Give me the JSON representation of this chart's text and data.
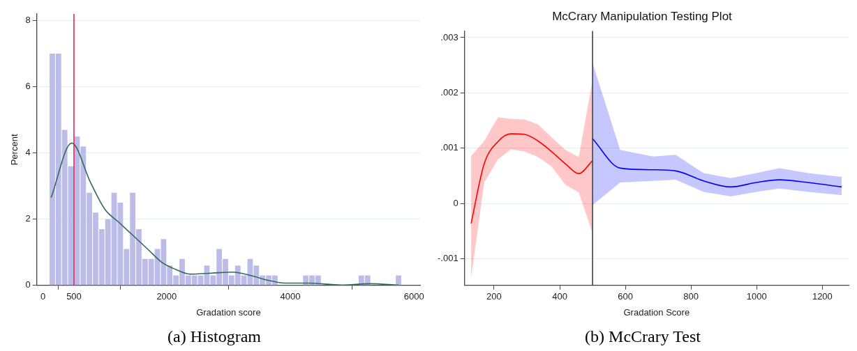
{
  "chart_data": [
    {
      "type": "histogram",
      "xlabel": "Gradation score",
      "ylabel": "Percent",
      "color": "#bcbce8",
      "bins": [
        100,
        200,
        300,
        400,
        500,
        600,
        700,
        800,
        900,
        1000,
        1100,
        1200,
        1300,
        1400,
        1500,
        1600,
        1700,
        1800,
        1900,
        2000,
        2100,
        2200,
        2300,
        2400,
        2500,
        2600,
        2700,
        2800,
        2900,
        3000,
        3100,
        3200,
        3300,
        3400,
        3500,
        3600,
        3700,
        3800,
        3900,
        4000,
        4100,
        4200,
        4300,
        4400,
        4500,
        4600,
        4700,
        4800,
        4900,
        5000,
        5100,
        5200,
        5300,
        5400,
        5500,
        5600,
        5700,
        5800
      ],
      "values": [
        7.0,
        7.0,
        4.7,
        3.6,
        4.5,
        4.2,
        2.8,
        2.2,
        1.7,
        2.0,
        2.8,
        2.5,
        1.1,
        2.8,
        1.7,
        0.8,
        0.8,
        1.1,
        1.4,
        0.6,
        0.3,
        0.8,
        0.3,
        0.3,
        0.3,
        0.6,
        0.3,
        1.1,
        0.8,
        0.3,
        0.6,
        0.3,
        0.8,
        0.6,
        0.3,
        0.3,
        0.3,
        0,
        0,
        0,
        0,
        0.3,
        0.3,
        0.3,
        0,
        0,
        0,
        0,
        0,
        0,
        0.3,
        0.3,
        0,
        0,
        0,
        0,
        0.3
      ],
      "series": [
        {
          "type": "line",
          "color": "#2f6b5c",
          "x": [
            130,
            463,
            770,
            1000,
            1230,
            1460,
            1690,
            1920,
            2150,
            2379,
            2720,
            3070,
            3375,
            3650,
            3910,
            4290,
            4830,
            5290,
            5750
          ],
          "values": [
            2.65,
            4.3,
            3.1,
            2.3,
            1.9,
            1.5,
            1.1,
            0.7,
            0.48,
            0.34,
            0.37,
            0.4,
            0.29,
            0.15,
            0.07,
            0.07,
            0.01,
            0.05,
            0.01
          ]
        }
      ],
      "xlim": [
        -100,
        6100
      ],
      "xticks": [
        0,
        500,
        2000,
        4000,
        6000
      ],
      "ylim": [
        0,
        8.2
      ],
      "yticks": [
        0,
        2,
        4,
        6,
        8
      ],
      "grid": "y",
      "ref_lines": [
        {
          "axis": "x",
          "value": 500,
          "color": "#e0174a"
        }
      ],
      "annotations": [
        "(a) Histogram"
      ]
    },
    {
      "type": "line",
      "title": "McCrary Manipulation Testing Plot",
      "xlabel": "Gradation Score",
      "series": [
        {
          "color": "#ff0000",
          "x": [
            130,
            170,
            212,
            251,
            293,
            334,
            375,
            417,
            458,
            499
          ],
          "values": [
            -0.00036,
            0.00072,
            0.00112,
            0.00126,
            0.00125,
            0.00113,
            0.00094,
            0.00072,
            0.00054,
            0.00077
          ],
          "lower": [
            -0.00134,
            0.00038,
            0.0008,
            0.00098,
            0.00094,
            0.00084,
            0.00067,
            0.00034,
            0.0002,
            -0.00052
          ],
          "upper": [
            0.00086,
            0.00113,
            0.00156,
            0.00153,
            0.00152,
            0.00143,
            0.0012,
            0.00097,
            0.00084,
            0.0022
          ]
        },
        {
          "color": "#0000ff",
          "x": [
            500,
            584,
            685,
            753,
            838,
            921,
            999,
            1069,
            1156,
            1259
          ],
          "values": [
            0.00117,
            0.00064,
            0.00061,
            0.00059,
            0.00041,
            0.0003,
            0.00038,
            0.00043,
            0.00038,
            0.0003
          ],
          "lower": [
            -3e-05,
            0.00038,
            0.00041,
            0.00043,
            0.00021,
            0.00013,
            0.00021,
            0.00027,
            0.00021,
            0.00015
          ],
          "upper": [
            0.00254,
            0.00097,
            0.00085,
            0.00088,
            0.00055,
            0.00046,
            0.00055,
            0.00064,
            0.00055,
            0.00048
          ]
        }
      ],
      "xlim": [
        110,
        1280
      ],
      "xticks": [
        200,
        400,
        600,
        800,
        1000,
        1200
      ],
      "ylim": [
        -0.00148,
        0.00312
      ],
      "yticks": [
        {
          "value": -0.001,
          "label": "-.001"
        },
        {
          "value": 0,
          "label": "0"
        },
        {
          "value": 0.001,
          "label": ".001"
        },
        {
          "value": 0.002,
          "label": ".002"
        },
        {
          "value": 0.003,
          "label": ".003"
        }
      ],
      "grid": "y",
      "ref_lines": [
        {
          "axis": "x",
          "value": 500,
          "color": "#333333"
        }
      ],
      "annotations": [
        "(b) McCrary Test"
      ]
    }
  ]
}
